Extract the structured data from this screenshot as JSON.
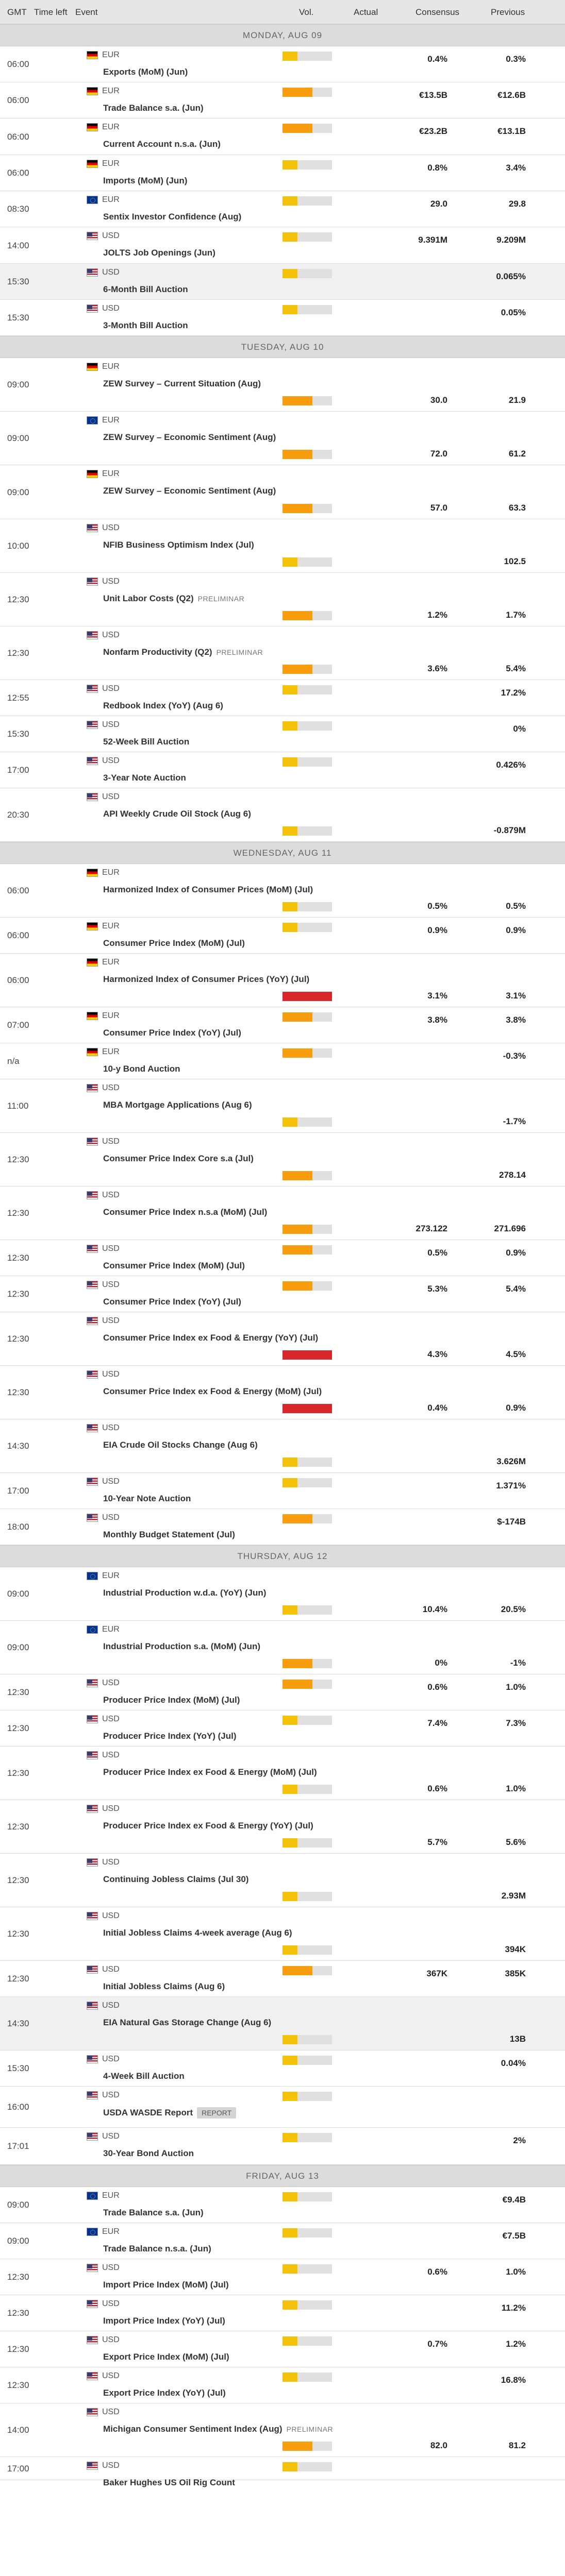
{
  "header": {
    "gmt": "GMT",
    "time_left": "Time left",
    "event": "Event",
    "vol": "Vol.",
    "actual": "Actual",
    "consensus": "Consensus",
    "previous": "Previous"
  },
  "colors": {
    "vol_low": "#f5c20a",
    "vol_medium": "#f89d0e",
    "vol_high": "#d8262b"
  },
  "days": [
    {
      "title": "MONDAY, AUG 09",
      "events": [
        {
          "time": "06:00",
          "cur": "EUR",
          "flag": "de",
          "name": "Exports (MoM) (Jun)",
          "vol": "low",
          "cons": "0.4%",
          "prev": "0.3%",
          "h": 70,
          "inline": true
        },
        {
          "time": "06:00",
          "cur": "EUR",
          "flag": "de",
          "name": "Trade Balance s.a. (Jun)",
          "vol": "medium",
          "cons": "€13.5B",
          "prev": "€12.6B",
          "h": 70,
          "inline": true
        },
        {
          "time": "06:00",
          "cur": "EUR",
          "flag": "de",
          "name": "Current Account n.s.a. (Jun)",
          "vol": "medium",
          "cons": "€23.2B",
          "prev": "€13.1B",
          "h": 71,
          "inline": true
        },
        {
          "time": "06:00",
          "cur": "EUR",
          "flag": "de",
          "name": "Imports (MoM) (Jun)",
          "vol": "low",
          "cons": "0.8%",
          "prev": "3.4%",
          "h": 70,
          "inline": true
        },
        {
          "time": "08:30",
          "cur": "EUR",
          "flag": "eu",
          "name": "Sentix Investor Confidence (Aug)",
          "vol": "low",
          "cons": "29.0",
          "prev": "29.8",
          "h": 70,
          "inline": true
        },
        {
          "time": "14:00",
          "cur": "USD",
          "flag": "us",
          "name": "JOLTS Job Openings (Jun)",
          "vol": "low",
          "cons": "9.391M",
          "prev": "9.209M",
          "h": 71,
          "inline": true
        },
        {
          "time": "15:30",
          "cur": "USD",
          "flag": "us",
          "name": "6-Month Bill Auction",
          "vol": "low",
          "cons": "",
          "prev": "0.065%",
          "h": 70,
          "inline": true,
          "hl": true
        },
        {
          "time": "15:30",
          "cur": "USD",
          "flag": "us",
          "name": "3-Month Bill Auction",
          "vol": "low",
          "cons": "",
          "prev": "0.05%",
          "h": 70,
          "inline": true
        }
      ]
    },
    {
      "title": "TUESDAY, AUG 10",
      "events": [
        {
          "time": "09:00",
          "cur": "EUR",
          "flag": "de",
          "name": "ZEW Survey – Current Situation (Aug)",
          "vol": "medium",
          "cons": "30.0",
          "prev": "21.9",
          "h": 104
        },
        {
          "time": "09:00",
          "cur": "EUR",
          "flag": "eu",
          "name": "ZEW Survey – Economic Sentiment (Aug)",
          "vol": "medium",
          "cons": "72.0",
          "prev": "61.2",
          "h": 104
        },
        {
          "time": "09:00",
          "cur": "EUR",
          "flag": "de",
          "name": "ZEW Survey – Economic Sentiment (Aug)",
          "vol": "medium",
          "cons": "57.0",
          "prev": "63.3",
          "h": 105
        },
        {
          "time": "10:00",
          "cur": "USD",
          "flag": "us",
          "name": "NFIB Business Optimism Index (Jul)",
          "vol": "low",
          "cons": "",
          "prev": "102.5",
          "h": 104
        },
        {
          "time": "12:30",
          "cur": "USD",
          "flag": "us",
          "name": "Unit Labor Costs (Q2)",
          "prelim": "PRELIMINAR",
          "vol": "medium",
          "cons": "1.2%",
          "prev": "1.7%",
          "h": 104
        },
        {
          "time": "12:30",
          "cur": "USD",
          "flag": "us",
          "name": "Nonfarm Productivity (Q2)",
          "prelim": "PRELIMINAR",
          "vol": "medium",
          "cons": "3.6%",
          "prev": "5.4%",
          "h": 104
        },
        {
          "time": "12:55",
          "cur": "USD",
          "flag": "us",
          "name": "Redbook Index (YoY) (Aug 6)",
          "vol": "low",
          "cons": "",
          "prev": "17.2%",
          "h": 70,
          "inline": true
        },
        {
          "time": "15:30",
          "cur": "USD",
          "flag": "us",
          "name": "52-Week Bill Auction",
          "vol": "low",
          "cons": "",
          "prev": "0%",
          "h": 70,
          "inline": true
        },
        {
          "time": "17:00",
          "cur": "USD",
          "flag": "us",
          "name": "3-Year Note Auction",
          "vol": "low",
          "cons": "",
          "prev": "0.426%",
          "h": 70,
          "inline": true
        },
        {
          "time": "20:30",
          "cur": "USD",
          "flag": "us",
          "name": "API Weekly Crude Oil Stock (Aug 6)",
          "vol": "low",
          "cons": "",
          "prev": "-0.879M",
          "h": 104
        }
      ]
    },
    {
      "title": "WEDNESDAY, AUG 11",
      "events": [
        {
          "time": "06:00",
          "cur": "EUR",
          "flag": "de",
          "name": "Harmonized Index of Consumer Prices (MoM) (Jul)",
          "vol": "low",
          "cons": "0.5%",
          "prev": "0.5%",
          "h": 104
        },
        {
          "time": "06:00",
          "cur": "EUR",
          "flag": "de",
          "name": "Consumer Price Index (MoM) (Jul)",
          "vol": "low",
          "cons": "0.9%",
          "prev": "0.9%",
          "h": 70,
          "inline": true
        },
        {
          "time": "06:00",
          "cur": "EUR",
          "flag": "de",
          "name": "Harmonized Index of Consumer Prices (YoY) (Jul)",
          "vol": "high",
          "cons": "3.1%",
          "prev": "3.1%",
          "h": 104
        },
        {
          "time": "07:00",
          "cur": "EUR",
          "flag": "de",
          "name": "Consumer Price Index (YoY) (Jul)",
          "vol": "medium",
          "cons": "3.8%",
          "prev": "3.8%",
          "h": 70,
          "inline": true
        },
        {
          "time": "n/a",
          "cur": "EUR",
          "flag": "de",
          "name": "10-y Bond Auction",
          "vol": "medium",
          "cons": "",
          "prev": "-0.3%",
          "h": 70,
          "inline": true
        },
        {
          "time": "11:00",
          "cur": "USD",
          "flag": "us",
          "name": "MBA Mortgage Applications (Aug 6)",
          "vol": "low",
          "cons": "",
          "prev": "-1.7%",
          "h": 104
        },
        {
          "time": "12:30",
          "cur": "USD",
          "flag": "us",
          "name": "Consumer Price Index Core s.a (Jul)",
          "vol": "medium",
          "cons": "",
          "prev": "278.14",
          "h": 104
        },
        {
          "time": "12:30",
          "cur": "USD",
          "flag": "us",
          "name": "Consumer Price Index n.s.a (MoM) (Jul)",
          "vol": "medium",
          "cons": "273.122",
          "prev": "271.696",
          "h": 104
        },
        {
          "time": "12:30",
          "cur": "USD",
          "flag": "us",
          "name": "Consumer Price Index (MoM) (Jul)",
          "vol": "medium",
          "cons": "0.5%",
          "prev": "0.9%",
          "h": 70,
          "inline": true
        },
        {
          "time": "12:30",
          "cur": "USD",
          "flag": "us",
          "name": "Consumer Price Index (YoY) (Jul)",
          "vol": "medium",
          "cons": "5.3%",
          "prev": "5.4%",
          "h": 70,
          "inline": true
        },
        {
          "time": "12:30",
          "cur": "USD",
          "flag": "us",
          "name": "Consumer Price Index ex Food & Energy (YoY) (Jul)",
          "vol": "high",
          "cons": "4.3%",
          "prev": "4.5%",
          "h": 104
        },
        {
          "time": "12:30",
          "cur": "USD",
          "flag": "us",
          "name": "Consumer Price Index ex Food & Energy (MoM) (Jul)",
          "vol": "high",
          "cons": "0.4%",
          "prev": "0.9%",
          "h": 104
        },
        {
          "time": "14:30",
          "cur": "USD",
          "flag": "us",
          "name": "EIA Crude Oil Stocks Change (Aug 6)",
          "vol": "low",
          "cons": "",
          "prev": "3.626M",
          "h": 104
        },
        {
          "time": "17:00",
          "cur": "USD",
          "flag": "us",
          "name": "10-Year Note Auction",
          "vol": "low",
          "cons": "",
          "prev": "1.371%",
          "h": 70,
          "inline": true
        },
        {
          "time": "18:00",
          "cur": "USD",
          "flag": "us",
          "name": "Monthly Budget Statement (Jul)",
          "vol": "medium",
          "cons": "",
          "prev": "$-174B",
          "h": 70,
          "inline": true
        }
      ]
    },
    {
      "title": "THURSDAY, AUG 12",
      "events": [
        {
          "time": "09:00",
          "cur": "EUR",
          "flag": "eu",
          "name": "Industrial Production w.d.a. (YoY) (Jun)",
          "vol": "low",
          "cons": "10.4%",
          "prev": "20.5%",
          "h": 104
        },
        {
          "time": "09:00",
          "cur": "EUR",
          "flag": "eu",
          "name": "Industrial Production s.a. (MoM) (Jun)",
          "vol": "medium",
          "cons": "0%",
          "prev": "-1%",
          "h": 104
        },
        {
          "time": "12:30",
          "cur": "USD",
          "flag": "us",
          "name": "Producer Price Index (MoM) (Jul)",
          "vol": "medium",
          "cons": "0.6%",
          "prev": "1.0%",
          "h": 70,
          "inline": true
        },
        {
          "time": "12:30",
          "cur": "USD",
          "flag": "us",
          "name": "Producer Price Index (YoY) (Jul)",
          "vol": "low",
          "cons": "7.4%",
          "prev": "7.3%",
          "h": 70,
          "inline": true
        },
        {
          "time": "12:30",
          "cur": "USD",
          "flag": "us",
          "name": "Producer Price Index ex Food & Energy (MoM) (Jul)",
          "vol": "low",
          "cons": "0.6%",
          "prev": "1.0%",
          "h": 104
        },
        {
          "time": "12:30",
          "cur": "USD",
          "flag": "us",
          "name": "Producer Price Index ex Food & Energy (YoY) (Jul)",
          "vol": "low",
          "cons": "5.7%",
          "prev": "5.6%",
          "h": 104
        },
        {
          "time": "12:30",
          "cur": "USD",
          "flag": "us",
          "name": "Continuing Jobless Claims (Jul 30)",
          "vol": "low",
          "cons": "",
          "prev": "2.93M",
          "h": 104
        },
        {
          "time": "12:30",
          "cur": "USD",
          "flag": "us",
          "name": "Initial Jobless Claims 4-week average (Aug 6)",
          "vol": "low",
          "cons": "",
          "prev": "394K",
          "h": 104
        },
        {
          "time": "12:30",
          "cur": "USD",
          "flag": "us",
          "name": "Initial Jobless Claims (Aug 6)",
          "vol": "medium",
          "cons": "367K",
          "prev": "385K",
          "h": 70,
          "inline": true
        },
        {
          "time": "14:30",
          "cur": "USD",
          "flag": "us",
          "name": "EIA Natural Gas Storage Change (Aug 6)",
          "vol": "low",
          "cons": "",
          "prev": "13B",
          "h": 104,
          "hl": true
        },
        {
          "time": "15:30",
          "cur": "USD",
          "flag": "us",
          "name": "4-Week Bill Auction",
          "vol": "low",
          "cons": "",
          "prev": "0.04%",
          "h": 70,
          "inline": true
        },
        {
          "time": "16:00",
          "cur": "USD",
          "flag": "us",
          "name": "USDA WASDE Report",
          "report": "REPORT",
          "vol": "low",
          "cons": "",
          "prev": "",
          "h": 80,
          "inline": true
        },
        {
          "time": "17:01",
          "cur": "USD",
          "flag": "us",
          "name": "30-Year Bond Auction",
          "vol": "low",
          "cons": "",
          "prev": "2%",
          "h": 72,
          "inline": true
        }
      ]
    },
    {
      "title": "FRIDAY, AUG 13",
      "events": [
        {
          "time": "09:00",
          "cur": "EUR",
          "flag": "eu",
          "name": "Trade Balance s.a. (Jun)",
          "vol": "low",
          "cons": "",
          "prev": "€9.4B",
          "h": 70,
          "inline": true
        },
        {
          "time": "09:00",
          "cur": "EUR",
          "flag": "eu",
          "name": "Trade Balance n.s.a. (Jun)",
          "vol": "low",
          "cons": "",
          "prev": "€7.5B",
          "h": 70,
          "inline": true
        },
        {
          "time": "12:30",
          "cur": "USD",
          "flag": "us",
          "name": "Import Price Index (MoM) (Jul)",
          "vol": "low",
          "cons": "0.6%",
          "prev": "1.0%",
          "h": 70,
          "inline": true
        },
        {
          "time": "12:30",
          "cur": "USD",
          "flag": "us",
          "name": "Import Price Index (YoY) (Jul)",
          "vol": "low",
          "cons": "",
          "prev": "11.2%",
          "h": 70,
          "inline": true
        },
        {
          "time": "12:30",
          "cur": "USD",
          "flag": "us",
          "name": "Export Price Index (MoM) (Jul)",
          "vol": "low",
          "cons": "0.7%",
          "prev": "1.2%",
          "h": 70,
          "inline": true
        },
        {
          "time": "12:30",
          "cur": "USD",
          "flag": "us",
          "name": "Export Price Index (YoY) (Jul)",
          "vol": "low",
          "cons": "",
          "prev": "16.8%",
          "h": 70,
          "inline": true
        },
        {
          "time": "14:00",
          "cur": "USD",
          "flag": "us",
          "name": "Michigan Consumer Sentiment Index (Aug)",
          "prelim": "PRELIMINAR",
          "vol": "medium",
          "cons": "82.0",
          "prev": "81.2",
          "h": 104
        },
        {
          "time": "17:00",
          "cur": "USD",
          "flag": "us",
          "name": "Baker Hughes US Oil Rig Count",
          "vol": "low",
          "cons": "",
          "prev": "",
          "h": 45,
          "inline": true
        }
      ]
    }
  ]
}
